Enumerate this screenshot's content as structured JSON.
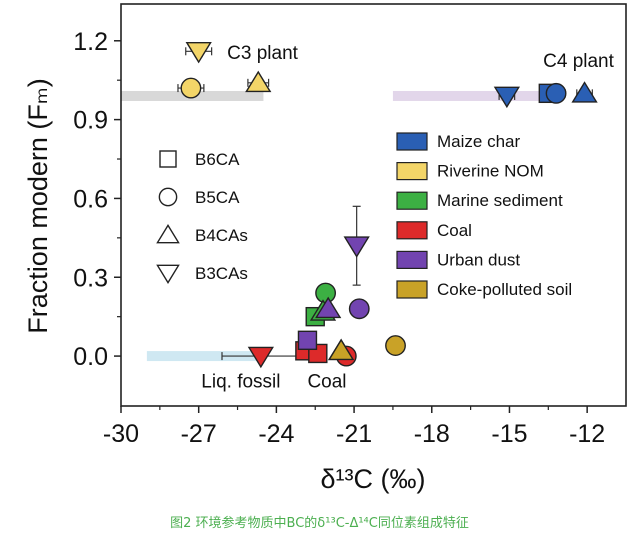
{
  "chart_data": {
    "type": "scatter",
    "xlabel": "δ¹³C (‰)",
    "ylabel": "Fraction modern (Fₘ)",
    "xlim": [
      -30,
      -10.5
    ],
    "ylim": [
      -0.19,
      1.34
    ],
    "x_ticks": [
      -30,
      -27,
      -24,
      -21,
      -18,
      -15,
      -12
    ],
    "x_tick_labels": [
      "-30",
      "-27",
      "-24",
      "-21",
      "-18",
      "-15",
      "-12"
    ],
    "y_ticks": [
      0.0,
      0.3,
      0.6,
      0.9,
      1.2
    ],
    "y_tick_labels": [
      "0.0",
      "0.3",
      "0.6",
      "0.9",
      "1.2"
    ],
    "bands": [
      {
        "name": "C3 band",
        "x": [
          -30,
          -24.5
        ],
        "y": 0.99,
        "color": "#d8d8d8"
      },
      {
        "name": "C4 band",
        "x": [
          -19.5,
          -13
        ],
        "y": 0.99,
        "color": "#e2d6ea"
      },
      {
        "name": "fossil band",
        "x": [
          -29,
          -24.5
        ],
        "y": 0.0,
        "color": "#cfe8f2"
      }
    ],
    "annotations": [
      {
        "text": "C3 plant",
        "x": -25.9,
        "y": 1.13
      },
      {
        "text": "C4 plant",
        "x": -13.7,
        "y": 1.1
      },
      {
        "text": "Liq. fossil",
        "x": -26.9,
        "y": -0.12
      },
      {
        "text": "Coal",
        "x": -22.8,
        "y": -0.12
      }
    ],
    "marker_legend": [
      {
        "shape": "square",
        "label": "B6CA"
      },
      {
        "shape": "circle",
        "label": "B5CA"
      },
      {
        "shape": "triangle-up",
        "label": "B4CAs"
      },
      {
        "shape": "triangle-down",
        "label": "B3CAs"
      }
    ],
    "series": [
      {
        "name": "Maize char",
        "color": "#2a5fb4",
        "points": [
          {
            "shape": "square",
            "x": -13.5,
            "y": 1.0,
            "xerr": 0.3
          },
          {
            "shape": "circle",
            "x": -13.2,
            "y": 1.0,
            "xerr": 0.35
          },
          {
            "shape": "triangle-up",
            "x": -12.1,
            "y": 1.0,
            "xerr": 0.3
          },
          {
            "shape": "triangle-down",
            "x": -15.1,
            "y": 0.99,
            "xerr": 0.3
          }
        ]
      },
      {
        "name": "Riverine NOM",
        "color": "#f3d568",
        "points": [
          {
            "shape": "circle",
            "x": -27.3,
            "y": 1.02,
            "xerr": 0.5
          },
          {
            "shape": "triangle-up",
            "x": -24.7,
            "y": 1.04,
            "xerr": 0.4
          },
          {
            "shape": "triangle-down",
            "x": -27.0,
            "y": 1.16,
            "xerr": 0.5,
            "yerr": 0.02
          }
        ]
      },
      {
        "name": "Marine sediment",
        "color": "#3cb043",
        "points": [
          {
            "shape": "square",
            "x": -22.5,
            "y": 0.15
          },
          {
            "shape": "circle",
            "x": -22.1,
            "y": 0.24
          },
          {
            "shape": "triangle-up",
            "x": -22.2,
            "y": 0.17
          }
        ]
      },
      {
        "name": "Coal",
        "color": "#dd2a2a",
        "points": [
          {
            "shape": "square",
            "x": -22.9,
            "y": 0.02
          },
          {
            "shape": "square",
            "x": -22.4,
            "y": 0.01
          },
          {
            "shape": "triangle-up",
            "x": -21.5,
            "y": 0.02
          },
          {
            "shape": "circle",
            "x": -21.3,
            "y": 0.0
          },
          {
            "shape": "triangle-down",
            "x": -24.6,
            "y": 0.0,
            "xerr": 1.5
          }
        ]
      },
      {
        "name": "Urban dust",
        "color": "#7244b0",
        "points": [
          {
            "shape": "square",
            "x": -22.8,
            "y": 0.06
          },
          {
            "shape": "circle",
            "x": -20.8,
            "y": 0.18
          },
          {
            "shape": "triangle-up",
            "x": -22.0,
            "y": 0.18
          },
          {
            "shape": "triangle-down",
            "x": -20.9,
            "y": 0.42,
            "yerr": 0.15
          }
        ]
      },
      {
        "name": "Coke-polluted soil",
        "color": "#c9a227",
        "points": [
          {
            "shape": "circle",
            "x": -19.4,
            "y": 0.04,
            "xerr": 0.3
          },
          {
            "shape": "triangle-up",
            "x": -21.5,
            "y": 0.02
          }
        ]
      }
    ]
  },
  "caption": "图2 环境参考物质中BC的δ¹³C-Δ¹⁴C同位素组成特征"
}
